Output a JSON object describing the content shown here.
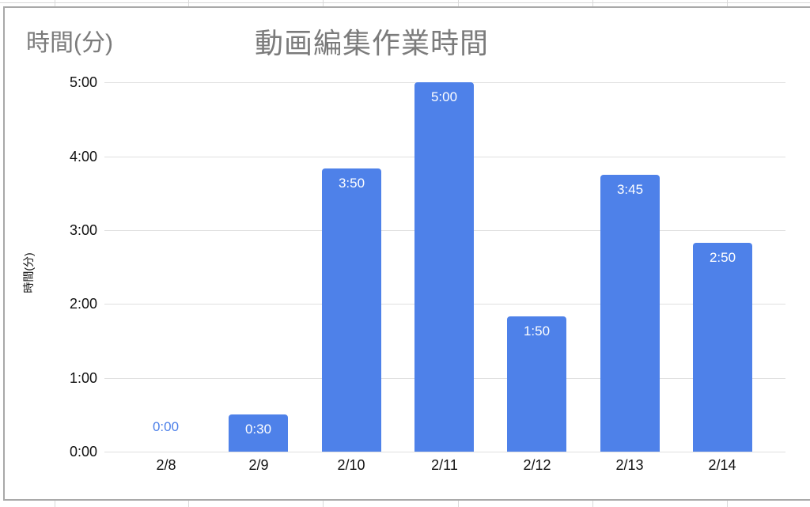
{
  "chart_data": {
    "type": "bar",
    "title": "動画編集作業時間",
    "xlabel": "",
    "ylabel": "時間(分)",
    "categories": [
      "2/8",
      "2/9",
      "2/10",
      "2/11",
      "2/12",
      "2/13",
      "2/14"
    ],
    "series": [
      {
        "name": "時間(分)",
        "values": [
          "0:00",
          "0:30",
          "3:50",
          "5:00",
          "1:50",
          "3:45",
          "2:50"
        ],
        "values_hours": [
          0,
          0.5,
          3.8333,
          5,
          1.8333,
          3.75,
          2.8333
        ]
      }
    ],
    "y_ticks": [
      "0:00",
      "1:00",
      "2:00",
      "3:00",
      "4:00",
      "5:00"
    ],
    "ylim_hours": [
      0,
      5
    ],
    "grid": true,
    "legend_position": "top-left",
    "data_label_style": "inside bar top, white; zero value shown above axis in bar color"
  },
  "colors": {
    "bar": "#4e81e9",
    "title_gray": "#7b7b7b",
    "gridline": "#e0e0e0",
    "axis_text": "#111111",
    "chart_border": "#a9a9a9",
    "sheet_gridline": "#d9d9d9",
    "background": "#ffffff"
  }
}
